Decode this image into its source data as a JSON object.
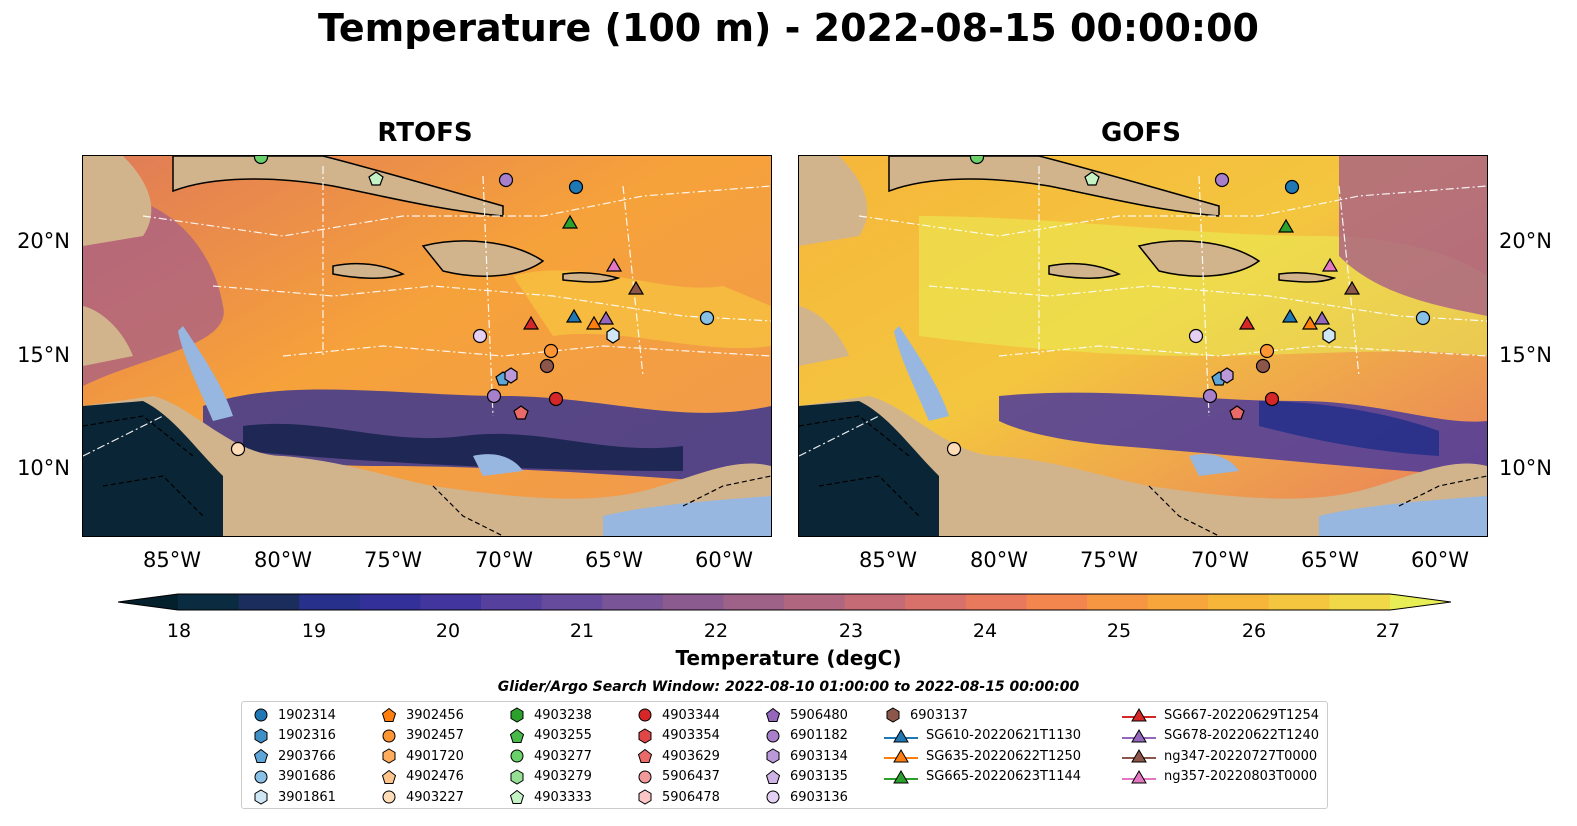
{
  "title": "Temperature (100 m) - 2022-08-15 00:00:00",
  "panels": [
    {
      "title": "RTOFS"
    },
    {
      "title": "GOFS"
    }
  ],
  "lon_labels": [
    "85°W",
    "80°W",
    "75°W",
    "70°W",
    "65°W",
    "60°W"
  ],
  "lat_labels": [
    "20°N",
    "15°N",
    "10°N"
  ],
  "colorbar": {
    "ticks": [
      "18",
      "19",
      "20",
      "21",
      "22",
      "23",
      "24",
      "25",
      "26",
      "27"
    ],
    "label": "Temperature (degC)",
    "colors": [
      "#04202c",
      "#0b2c40",
      "#1a2d5c",
      "#27308a",
      "#33309a",
      "#42369e",
      "#55409e",
      "#664a9c",
      "#795496",
      "#8b5b8f",
      "#9e6188",
      "#b1667f",
      "#c56b75",
      "#d8716a",
      "#e8795d",
      "#f3864f",
      "#f69642",
      "#f7a63b",
      "#f6b63a",
      "#f4c63f",
      "#f0d848",
      "#e8ee55"
    ]
  },
  "legend_title": "Glider/Argo Search Window: 2022-08-10 01:00:00 to 2022-08-15 00:00:00",
  "legend": {
    "columns": [
      [
        {
          "label": "1902314",
          "marker": "circle",
          "color": "#1f77b4"
        },
        {
          "label": "1902316",
          "marker": "hexagon",
          "color": "#3f8fc7"
        },
        {
          "label": "2903766",
          "marker": "pentagon",
          "color": "#5ea6d8"
        },
        {
          "label": "3901686",
          "marker": "circle",
          "color": "#89c0e6"
        },
        {
          "label": "3901861",
          "marker": "hexagon",
          "color": "#cfe6f5"
        }
      ],
      [
        {
          "label": "3902456",
          "marker": "pentagon",
          "color": "#ff7f0e"
        },
        {
          "label": "3902457",
          "marker": "circle",
          "color": "#ff9533"
        },
        {
          "label": "4901720",
          "marker": "hexagon",
          "color": "#ffac5c"
        },
        {
          "label": "4902476",
          "marker": "pentagon",
          "color": "#ffc48c"
        },
        {
          "label": "4903227",
          "marker": "circle",
          "color": "#ffdcb8"
        }
      ],
      [
        {
          "label": "4903238",
          "marker": "hexagon",
          "color": "#2ca02c"
        },
        {
          "label": "4903255",
          "marker": "pentagon",
          "color": "#48b848"
        },
        {
          "label": "4903277",
          "marker": "circle",
          "color": "#6ad06a"
        },
        {
          "label": "4903279",
          "marker": "hexagon",
          "color": "#95e095"
        },
        {
          "label": "4903333",
          "marker": "pentagon",
          "color": "#c4f2c4"
        }
      ],
      [
        {
          "label": "4903344",
          "marker": "circle",
          "color": "#d62728"
        },
        {
          "label": "4903354",
          "marker": "hexagon",
          "color": "#e04646"
        },
        {
          "label": "4903629",
          "marker": "pentagon",
          "color": "#ea6a6a"
        },
        {
          "label": "5906437",
          "marker": "circle",
          "color": "#f29a9a"
        },
        {
          "label": "5906478",
          "marker": "hexagon",
          "color": "#fac6c6"
        }
      ],
      [
        {
          "label": "5906480",
          "marker": "pentagon",
          "color": "#9467bd"
        },
        {
          "label": "6901182",
          "marker": "circle",
          "color": "#a77fcb"
        },
        {
          "label": "6903134",
          "marker": "hexagon",
          "color": "#bb98d8"
        },
        {
          "label": "6903135",
          "marker": "pentagon",
          "color": "#cfb3e5"
        },
        {
          "label": "6903136",
          "marker": "circle",
          "color": "#e3d0f2"
        }
      ],
      [
        {
          "label": "6903137",
          "marker": "hexagon",
          "color": "#8c564b"
        },
        {
          "label": "SG610-20220621T1130",
          "marker": "triangle-line",
          "color": "#1f77b4"
        },
        {
          "label": "SG635-20220622T1250",
          "marker": "triangle-line",
          "color": "#ff7f0e"
        },
        {
          "label": "SG665-20220623T1144",
          "marker": "triangle-line",
          "color": "#2ca02c"
        }
      ],
      [
        {
          "label": "SG667-20220629T1254",
          "marker": "triangle-line",
          "color": "#d62728"
        },
        {
          "label": "SG678-20220622T1240",
          "marker": "triangle-line",
          "color": "#9467bd"
        },
        {
          "label": "ng347-20220727T0000",
          "marker": "triangle-line",
          "color": "#8c564b"
        },
        {
          "label": "ng357-20220803T0000",
          "marker": "triangle-line",
          "color": "#e377c2"
        }
      ]
    ]
  },
  "colors": {
    "land": "#d2b48c",
    "shelf": "#97b6e0",
    "ocean_warm": "#f5a43a"
  }
}
